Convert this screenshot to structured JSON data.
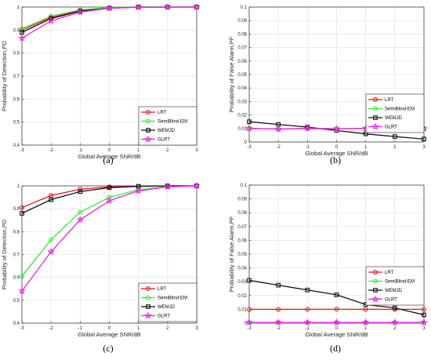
{
  "chart_data": [
    {
      "type": "line",
      "caption": "(a)",
      "xlabel": "Global Average SNR/dB",
      "ylabel": "Probability of Detection,PD",
      "x": [
        -3,
        -2,
        -1,
        0,
        1,
        2,
        3
      ],
      "xlim": [
        -3,
        3
      ],
      "ylim": [
        0.4,
        1
      ],
      "yticks": [
        0.4,
        0.5,
        0.6,
        0.7,
        0.8,
        0.9,
        1
      ],
      "ytick_labels": [
        "0.4",
        "0.5",
        "0.6",
        "0.7",
        "0.8",
        "0.9",
        "1"
      ],
      "grid": true,
      "legend_position": "lower-right",
      "series": [
        {
          "name": "LRT",
          "color": "#e8141b",
          "marker": "circle",
          "values": [
            0.9,
            0.955,
            0.985,
            0.997,
            1.0,
            1.0,
            1.0
          ]
        },
        {
          "name": "SemiBlind-EM",
          "color": "#33ee33",
          "marker": "circle",
          "values": [
            0.905,
            0.96,
            0.988,
            0.998,
            1.0,
            1.0,
            1.0
          ]
        },
        {
          "name": "WEMJD",
          "color": "#111111",
          "marker": "square",
          "values": [
            0.89,
            0.95,
            0.982,
            0.995,
            1.0,
            1.0,
            1.0
          ]
        },
        {
          "name": "GLRT",
          "color": "#f020f0",
          "marker": "star",
          "values": [
            0.865,
            0.94,
            0.978,
            0.995,
            0.999,
            1.0,
            1.0
          ]
        }
      ]
    },
    {
      "type": "line",
      "caption": "(b)",
      "xlabel": "Global Average SNR/dB",
      "ylabel": "Probability of False Alarm,PF",
      "x": [
        -3,
        -2,
        -1,
        0,
        1,
        2,
        3
      ],
      "xlim": [
        -3,
        3
      ],
      "ylim": [
        0,
        0.1
      ],
      "yticks": [
        0,
        0.01,
        0.02,
        0.03,
        0.04,
        0.05,
        0.06,
        0.07,
        0.08,
        0.09,
        0.1
      ],
      "ytick_labels": [
        "0",
        "0.01",
        "0.02",
        "0.03",
        "0.04",
        "0.05",
        "0.06",
        "0.07",
        "0.08",
        "0.09",
        "0.1"
      ],
      "grid": true,
      "legend_position": "lower-right",
      "series": [
        {
          "name": "LRT",
          "color": "#e8141b",
          "marker": "circle",
          "values": [
            0.01,
            0.0095,
            0.01,
            0.0098,
            0.01,
            0.01,
            0.01
          ]
        },
        {
          "name": "SemiBlind-EM",
          "color": "#33ee33",
          "marker": "circle",
          "values": [
            0.01,
            0.0095,
            0.01,
            0.0098,
            0.01,
            0.01,
            0.01
          ]
        },
        {
          "name": "WEMJD",
          "color": "#111111",
          "marker": "square",
          "values": [
            0.015,
            0.013,
            0.011,
            0.0085,
            0.006,
            0.004,
            0.0022
          ]
        },
        {
          "name": "GLRT",
          "color": "#f020f0",
          "marker": "star",
          "values": [
            0.01,
            0.0095,
            0.01,
            0.0098,
            0.01,
            0.01,
            0.01
          ]
        }
      ]
    },
    {
      "type": "line",
      "caption": "(c)",
      "xlabel": "Global Average SNR/dB",
      "ylabel": "Probability of Detection,PD",
      "x": [
        -3,
        -2,
        -1,
        0,
        1,
        2,
        3
      ],
      "xlim": [
        -3,
        3
      ],
      "ylim": [
        0.4,
        1
      ],
      "yticks": [
        0.4,
        0.5,
        0.6,
        0.7,
        0.8,
        0.9,
        1
      ],
      "ytick_labels": [
        "0.4",
        "0.5",
        "0.6",
        "0.7",
        "0.8",
        "0.9",
        "1"
      ],
      "grid": true,
      "legend_position": "lower-right",
      "series": [
        {
          "name": "LRT",
          "color": "#e8141b",
          "marker": "circle",
          "values": [
            0.905,
            0.958,
            0.985,
            0.996,
            0.999,
            1.0,
            1.0
          ]
        },
        {
          "name": "SemiBlind-EM",
          "color": "#33ee33",
          "marker": "circle",
          "values": [
            0.605,
            0.765,
            0.885,
            0.95,
            0.983,
            0.997,
            1.0
          ]
        },
        {
          "name": "WEMJD",
          "color": "#111111",
          "marker": "square",
          "values": [
            0.88,
            0.94,
            0.975,
            0.992,
            0.998,
            1.0,
            1.0
          ]
        },
        {
          "name": "GLRT",
          "color": "#f020f0",
          "marker": "star",
          "values": [
            0.54,
            0.712,
            0.852,
            0.935,
            0.978,
            0.996,
            1.0
          ]
        }
      ]
    },
    {
      "type": "line",
      "caption": "(d)",
      "xlabel": "Global Average SNR/dB",
      "ylabel": "Probability of False Alarm,PF",
      "x": [
        -3,
        -2,
        -1,
        0,
        1,
        2,
        3
      ],
      "xlim": [
        -3,
        3
      ],
      "ylim": [
        0,
        0.1
      ],
      "yticks": [
        0,
        0.01,
        0.02,
        0.03,
        0.04,
        0.05,
        0.06,
        0.07,
        0.08,
        0.09,
        0.1
      ],
      "ytick_labels": [
        "0",
        "0.01",
        "0.02",
        "0.03",
        "0.04",
        "0.05",
        "0.06",
        "0.07",
        "0.08",
        "0.09",
        "0.1"
      ],
      "grid": true,
      "legend_position": "right",
      "series": [
        {
          "name": "LRT",
          "color": "#e8141b",
          "marker": "circle",
          "values": [
            0.01,
            0.01,
            0.01,
            0.0101,
            0.01,
            0.01,
            0.01
          ]
        },
        {
          "name": "SemiBlind-EM",
          "color": "#33ee33",
          "marker": "circle",
          "values": [
            0.0005,
            0.0005,
            0.0005,
            0.0005,
            0.0005,
            0.0005,
            0.0005
          ]
        },
        {
          "name": "WEMJD",
          "color": "#111111",
          "marker": "square",
          "values": [
            0.031,
            0.0275,
            0.024,
            0.0205,
            0.0135,
            0.011,
            0.006
          ]
        },
        {
          "name": "GLRT",
          "color": "#f020f0",
          "marker": "star",
          "values": [
            0.0005,
            0.0005,
            0.0005,
            0.0005,
            0.0005,
            0.0005,
            0.0005
          ]
        }
      ]
    }
  ]
}
